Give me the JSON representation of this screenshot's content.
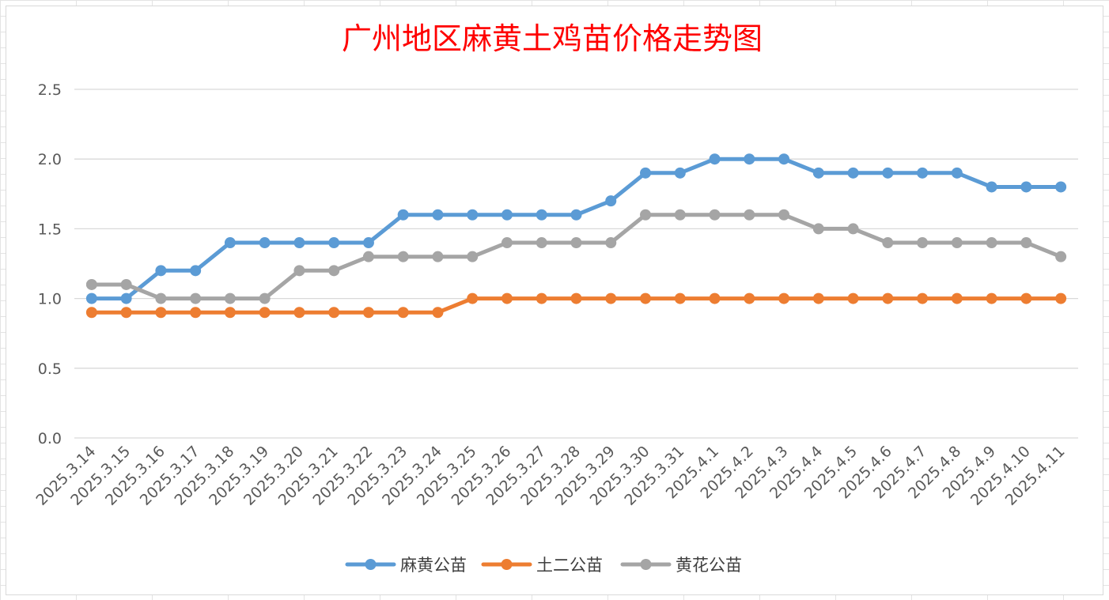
{
  "chart_data": {
    "type": "line",
    "title": "广州地区麻黄土鸡苗价格走势图",
    "xlabel": "",
    "ylabel": "",
    "ylim": [
      0,
      2.5
    ],
    "yticks": [
      "0.0",
      "0.5",
      "1.0",
      "1.5",
      "2.0",
      "2.5"
    ],
    "grid": true,
    "legend_position": "bottom",
    "categories": [
      "2025.3.14",
      "2025.3.15",
      "2025.3.16",
      "2025.3.17",
      "2025.3.18",
      "2025.3.19",
      "2025.3.20",
      "2025.3.21",
      "2025.3.22",
      "2025.3.23",
      "2025.3.24",
      "2025.3.25",
      "2025.3.26",
      "2025.3.27",
      "2025.3.28",
      "2025.3.29",
      "2025.3.30",
      "2025.3.31",
      "2025.4.1",
      "2025.4.2",
      "2025.4.3",
      "2025.4.4",
      "2025.4.5",
      "2025.4.6",
      "2025.4.7",
      "2025.4.8",
      "2025.4.9",
      "2025.4.10",
      "2025.4.11"
    ],
    "series": [
      {
        "name": "麻黄公苗",
        "color": "#5b9bd5",
        "values": [
          1.0,
          1.0,
          1.2,
          1.2,
          1.4,
          1.4,
          1.4,
          1.4,
          1.4,
          1.6,
          1.6,
          1.6,
          1.6,
          1.6,
          1.6,
          1.7,
          1.9,
          1.9,
          2.0,
          2.0,
          2.0,
          1.9,
          1.9,
          1.9,
          1.9,
          1.9,
          1.8,
          1.8,
          1.8
        ]
      },
      {
        "name": "土二公苗",
        "color": "#ed7d31",
        "values": [
          0.9,
          0.9,
          0.9,
          0.9,
          0.9,
          0.9,
          0.9,
          0.9,
          0.9,
          0.9,
          0.9,
          1.0,
          1.0,
          1.0,
          1.0,
          1.0,
          1.0,
          1.0,
          1.0,
          1.0,
          1.0,
          1.0,
          1.0,
          1.0,
          1.0,
          1.0,
          1.0,
          1.0,
          1.0
        ]
      },
      {
        "name": "黄花公苗",
        "color": "#a5a5a5",
        "values": [
          1.1,
          1.1,
          1.0,
          1.0,
          1.0,
          1.0,
          1.2,
          1.2,
          1.3,
          1.3,
          1.3,
          1.3,
          1.4,
          1.4,
          1.4,
          1.4,
          1.6,
          1.6,
          1.6,
          1.6,
          1.6,
          1.5,
          1.5,
          1.4,
          1.4,
          1.4,
          1.4,
          1.4,
          1.3
        ]
      }
    ]
  }
}
